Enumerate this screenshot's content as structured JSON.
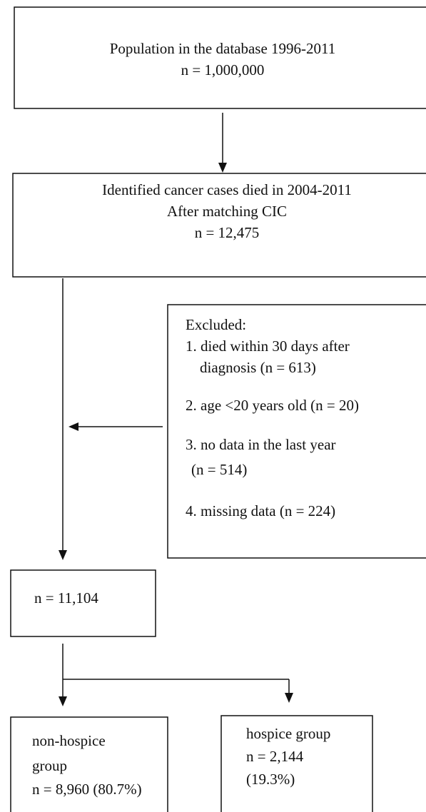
{
  "nodes": [
    {
      "lines": [
        "Population in the database 1996-2011",
        "n = 1,000,000"
      ]
    },
    {
      "lines": [
        "Identified cancer cases died in 2004-2011",
        "After matching CIC",
        "n = 12,475"
      ]
    },
    {
      "lines": [
        "Excluded:",
        "1. died within 30 days after",
        "diagnosis (n = 613)",
        "2. age <20 years old (n = 20)",
        "3. no data in the last year",
        "(n = 514)",
        "4. missing data (n = 224)"
      ]
    },
    {
      "lines": [
        "n = 11,104"
      ]
    },
    {
      "lines": [
        "non-hospice",
        "group",
        "n = 8,960 (80.7%)"
      ]
    },
    {
      "lines": [
        "hospice group",
        "n = 2,144",
        "(19.3%)"
      ]
    }
  ]
}
